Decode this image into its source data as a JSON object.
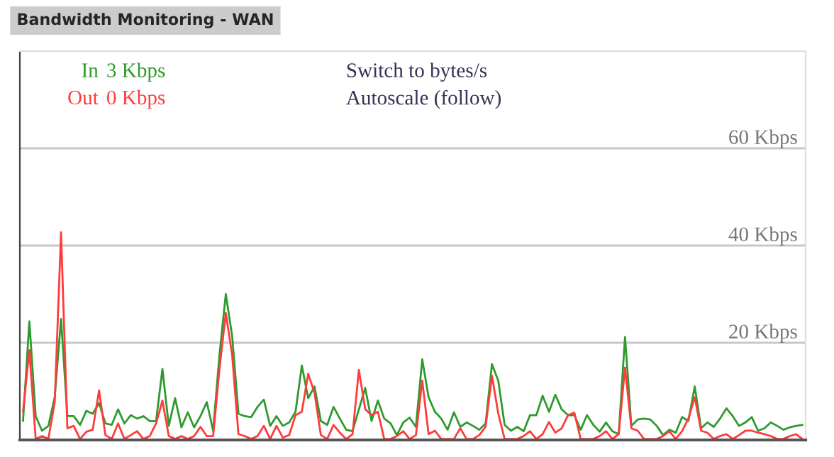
{
  "chart_data": {
    "type": "line",
    "title": "Bandwidth Monitoring - WAN",
    "categories": [
      null,
      null,
      null,
      null,
      null,
      null,
      null,
      null,
      null,
      null,
      null,
      null,
      null,
      null,
      null,
      null,
      null,
      null,
      null,
      null,
      null,
      null,
      null,
      null,
      null,
      null,
      null,
      null,
      null,
      null,
      null,
      null,
      null,
      null,
      null,
      null,
      null,
      null,
      null,
      null,
      null,
      null,
      null,
      null,
      null,
      null,
      null,
      null,
      null,
      null,
      null,
      null,
      null,
      null,
      null,
      null,
      null,
      null,
      null,
      null,
      null,
      null,
      null,
      null,
      null,
      null,
      null,
      null,
      null,
      null,
      null,
      null,
      null,
      null,
      null,
      null,
      null,
      null,
      null,
      null,
      null,
      null,
      null,
      null,
      null,
      null,
      null,
      null,
      null,
      null,
      null,
      null,
      null,
      null,
      null,
      null,
      null,
      null,
      null,
      null,
      null,
      null,
      null,
      null,
      null,
      null,
      null,
      null,
      null,
      null,
      null,
      null,
      null,
      null,
      null,
      null,
      null,
      null,
      null,
      null,
      null,
      null,
      null,
      null
    ],
    "series": [
      {
        "name": "In",
        "color": "#2e9a2e",
        "values": [
          3.9,
          24.4,
          4.9,
          1.9,
          2.9,
          8.8,
          24.9,
          4.9,
          4.9,
          3.1,
          6.0,
          5.4,
          7.6,
          3.4,
          3.1,
          6.3,
          3.4,
          5.1,
          4.4,
          4.9,
          3.9,
          3.9,
          14.6,
          2.9,
          8.6,
          2.6,
          5.7,
          2.6,
          4.9,
          7.8,
          1.9,
          17.5,
          30.0,
          21.4,
          5.4,
          4.9,
          4.7,
          6.8,
          8.3,
          2.9,
          4.9,
          2.9,
          3.6,
          5.8,
          15.3,
          8.6,
          11.0,
          3.9,
          3.1,
          6.8,
          4.4,
          2.1,
          1.8,
          6.3,
          10.7,
          3.9,
          8.1,
          4.4,
          3.4,
          1.0,
          3.6,
          4.6,
          2.7,
          16.6,
          8.8,
          5.8,
          4.4,
          2.1,
          5.7,
          2.7,
          3.6,
          2.9,
          2.1,
          3.4,
          15.6,
          12.2,
          3.1,
          1.9,
          2.7,
          1.8,
          5.1,
          5.1,
          9.1,
          5.8,
          9.3,
          6.3,
          5.1,
          5.1,
          2.1,
          5.1,
          3.1,
          1.7,
          3.6,
          1.8,
          1.2,
          21.2,
          2.9,
          4.2,
          4.4,
          4.2,
          2.9,
          1.0,
          2.1,
          1.5,
          4.7,
          3.9,
          11.0,
          2.4,
          3.6,
          2.7,
          4.4,
          6.5,
          4.9,
          2.9,
          3.6,
          4.7,
          1.9,
          2.4,
          3.6,
          2.9,
          2.1,
          2.6,
          2.9,
          3.1
        ]
      },
      {
        "name": "Out",
        "color": "#ff3b3b",
        "values": [
          5.8,
          18.5,
          0.2,
          0.8,
          0.2,
          7.8,
          42.7,
          2.4,
          2.9,
          0.2,
          1.7,
          2.1,
          10.2,
          1.0,
          0.2,
          3.4,
          0.2,
          1.0,
          1.8,
          0.2,
          0.8,
          3.4,
          8.1,
          0.8,
          0.2,
          0.8,
          0.2,
          0.8,
          2.7,
          0.8,
          0.8,
          14.6,
          26.1,
          17.5,
          1.2,
          0.8,
          0.2,
          0.8,
          2.9,
          0.2,
          2.9,
          0.5,
          1.0,
          5.1,
          5.8,
          13.6,
          9.7,
          1.0,
          0.2,
          3.1,
          1.5,
          0.2,
          1.2,
          14.4,
          6.3,
          5.1,
          5.8,
          0.2,
          0.2,
          0.8,
          1.8,
          0.2,
          1.0,
          12.2,
          1.2,
          1.9,
          0.2,
          0.2,
          0.2,
          2.4,
          0.2,
          0.2,
          1.0,
          2.7,
          13.2,
          5.4,
          0.2,
          0.2,
          0.2,
          0.8,
          1.8,
          0.2,
          1.2,
          3.7,
          1.5,
          2.4,
          5.1,
          5.6,
          0.2,
          0.2,
          0.2,
          0.8,
          1.8,
          0.2,
          1.2,
          14.9,
          2.4,
          1.9,
          0.2,
          0.2,
          0.2,
          0.8,
          1.8,
          0.2,
          1.8,
          4.4,
          8.8,
          1.9,
          1.5,
          0.2,
          0.8,
          1.2,
          0.2,
          1.0,
          1.9,
          1.9,
          1.5,
          1.2,
          0.8,
          0.2,
          0.2,
          0.8,
          1.2,
          0.2
        ]
      }
    ],
    "annotations": [
      "3 Kbps",
      "0 Kbps",
      "Switch to bytes/s",
      "Autoscale (follow)"
    ],
    "ylim": [
      0,
      80
    ],
    "yticks": [
      {
        "value": 20,
        "label": "20 Kbps"
      },
      {
        "value": 40,
        "label": "40 Kbps"
      },
      {
        "value": 60,
        "label": "60 Kbps"
      }
    ],
    "grid": "y",
    "legend": "top left",
    "marker": "none",
    "line_style": "solid"
  }
}
